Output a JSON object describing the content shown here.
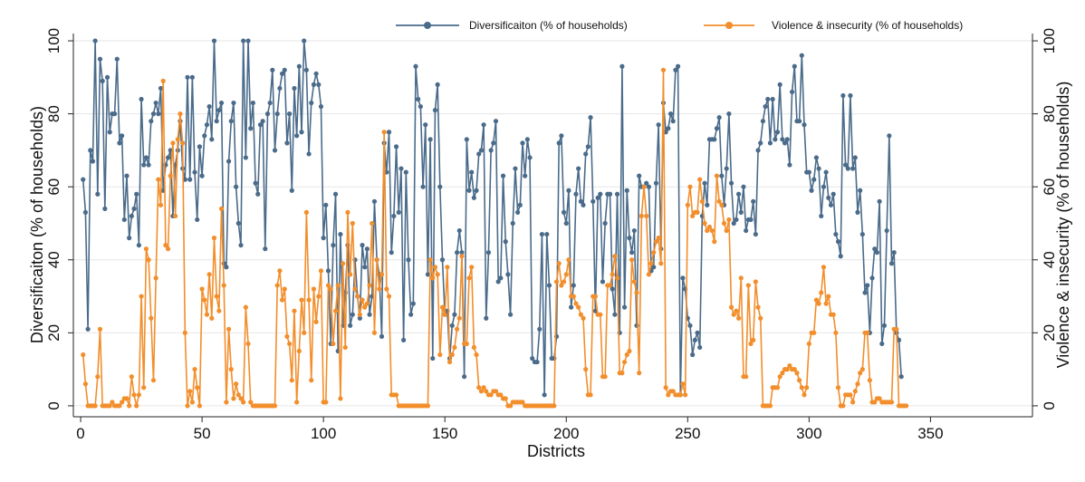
{
  "chart_data": {
    "type": "line",
    "xlabel": "Districts",
    "ylabel_left": "Diversificaiton (% of households)",
    "ylabel_right": "Violence & insecurity (% of households)",
    "xlim": [
      -3,
      392
    ],
    "ylim": [
      -3,
      102
    ],
    "xticks": [
      0,
      50,
      100,
      150,
      200,
      250,
      300,
      350
    ],
    "yticks": [
      0,
      20,
      40,
      60,
      80,
      100
    ],
    "grid": "horizontal",
    "legend_position": "top",
    "x_start": 1,
    "series": [
      {
        "name": "Diversificaiton (% of households)",
        "color": "#4a6b8a",
        "axis": "left",
        "values": [
          62,
          53,
          21,
          70,
          67,
          100,
          58,
          95,
          89,
          54,
          90,
          75,
          80,
          80,
          95,
          72,
          74,
          51,
          63,
          46,
          52,
          54,
          58,
          44,
          84,
          66,
          68,
          66,
          78,
          80,
          83,
          80,
          87,
          59,
          66,
          68,
          70,
          52,
          66,
          70,
          78,
          65,
          62,
          90,
          62,
          90,
          64,
          51,
          71,
          63,
          74,
          77,
          82,
          73,
          100,
          78,
          81,
          83,
          39,
          38,
          67,
          78,
          83,
          60,
          50,
          44,
          100,
          68,
          100,
          76,
          83,
          61,
          58,
          77,
          78,
          43,
          80,
          83,
          92,
          70,
          80,
          87,
          91,
          92,
          72,
          80,
          59,
          87,
          74,
          93,
          75,
          100,
          92,
          69,
          83,
          88,
          91,
          88,
          82,
          46,
          55,
          37,
          17,
          44,
          58,
          15,
          47,
          22,
          31,
          44,
          22,
          25,
          40,
          30,
          24,
          44,
          38,
          43,
          25,
          30,
          56,
          40,
          36,
          19,
          72,
          64,
          75,
          42,
          52,
          71,
          53,
          65,
          18,
          64,
          40,
          25,
          28,
          93,
          84,
          82,
          60,
          77,
          36,
          73,
          13,
          81,
          88,
          60,
          40,
          25,
          26,
          13,
          22,
          25,
          42,
          48,
          42,
          8,
          73,
          59,
          64,
          57,
          59,
          69,
          70,
          77,
          24,
          42,
          70,
          72,
          78,
          34,
          35,
          63,
          45,
          36,
          25,
          50,
          65,
          53,
          55,
          72,
          63,
          73,
          68,
          13,
          12,
          12,
          21,
          47,
          3,
          47,
          33,
          13,
          13,
          19,
          72,
          74,
          53,
          50,
          59,
          27,
          33,
          58,
          65,
          56,
          55,
          69,
          71,
          79,
          56,
          26,
          57,
          58,
          34,
          50,
          58,
          58,
          32,
          25,
          58,
          20,
          93,
          27,
          59,
          46,
          42,
          48,
          22,
          63,
          60,
          60,
          61,
          60,
          37,
          38,
          61,
          77,
          43,
          83,
          75,
          76,
          80,
          78,
          92,
          93,
          3,
          35,
          32,
          24,
          22,
          14,
          18,
          20,
          16,
          52,
          61,
          55,
          73,
          73,
          73,
          76,
          79,
          63,
          55,
          65,
          80,
          61,
          50,
          51,
          58,
          53,
          60,
          48,
          51,
          51,
          56,
          47,
          70,
          72,
          78,
          82,
          84,
          72,
          84,
          73,
          75,
          88,
          73,
          72,
          73,
          66,
          86,
          93,
          78,
          78,
          96,
          77,
          64,
          64,
          59,
          62,
          68,
          65,
          52,
          60,
          64,
          57,
          55,
          58,
          47,
          45,
          41,
          85,
          66,
          65,
          85,
          65,
          68,
          53,
          59,
          47,
          31,
          33,
          20,
          35,
          43,
          42,
          56,
          17,
          22,
          48,
          74,
          39,
          42,
          20,
          18,
          8
        ]
      },
      {
        "name": "Violence & insecurity (% of households)",
        "color": "#f28e2b",
        "axis": "right",
        "values": [
          14,
          6,
          0,
          0,
          0,
          0,
          8,
          21,
          0,
          0,
          0,
          0,
          1,
          0,
          0,
          0,
          1,
          2,
          2,
          0,
          8,
          3,
          0,
          3,
          30,
          5,
          43,
          40,
          24,
          7,
          35,
          62,
          55,
          89,
          44,
          43,
          63,
          72,
          52,
          73,
          80,
          72,
          20,
          0,
          4,
          1,
          10,
          5,
          0,
          32,
          29,
          25,
          36,
          24,
          46,
          30,
          26,
          54,
          33,
          1,
          21,
          10,
          2,
          6,
          3,
          2,
          1,
          27,
          17,
          1,
          0,
          0,
          0,
          0,
          0,
          0,
          0,
          0,
          0,
          0,
          33,
          37,
          29,
          32,
          19,
          17,
          7,
          26,
          1,
          15,
          29,
          20,
          53,
          29,
          7,
          32,
          23,
          30,
          37,
          1,
          1,
          33,
          32,
          17,
          26,
          33,
          2,
          39,
          16,
          53,
          36,
          50,
          32,
          30,
          25,
          29,
          27,
          28,
          33,
          50,
          20,
          40,
          32,
          36,
          75,
          32,
          30,
          3,
          3,
          3,
          0,
          0,
          0,
          0,
          0,
          0,
          0,
          0,
          0,
          0,
          0,
          0,
          0,
          40,
          35,
          38,
          36,
          14,
          27,
          25,
          38,
          12,
          14,
          16,
          21,
          24,
          41,
          17,
          17,
          35,
          38,
          16,
          14,
          5,
          4,
          5,
          4,
          3,
          3,
          4,
          4,
          3,
          3,
          2,
          2,
          0,
          0,
          1,
          1,
          1,
          1,
          1,
          0,
          0,
          0,
          0,
          0,
          0,
          0,
          0,
          0,
          0,
          0,
          0,
          0,
          34,
          39,
          33,
          34,
          36,
          40,
          30,
          30,
          28,
          27,
          25,
          24,
          10,
          3,
          3,
          30,
          30,
          25,
          25,
          8,
          8,
          33,
          33,
          36,
          41,
          35,
          9,
          9,
          12,
          14,
          15,
          40,
          34,
          31,
          9,
          52,
          60,
          52,
          36,
          39,
          42,
          45,
          46,
          39,
          92,
          5,
          3,
          4,
          4,
          3,
          3,
          3,
          6,
          3,
          55,
          60,
          52,
          53,
          53,
          62,
          56,
          50,
          48,
          49,
          48,
          45,
          63,
          56,
          55,
          50,
          48,
          51,
          27,
          25,
          26,
          24,
          35,
          8,
          8,
          33,
          17,
          18,
          34,
          27,
          24,
          0,
          0,
          0,
          0,
          5,
          5,
          5,
          8,
          9,
          10,
          10,
          11,
          10,
          10,
          9,
          7,
          5,
          3,
          5,
          17,
          20,
          20,
          29,
          28,
          31,
          38,
          28,
          30,
          25,
          25,
          20,
          5,
          0,
          0,
          3,
          3,
          3,
          1,
          4,
          6,
          9,
          10,
          20,
          20,
          7,
          1,
          1,
          2,
          2,
          1,
          1,
          1,
          1,
          1,
          21,
          21,
          0,
          0,
          0,
          0
        ]
      }
    ]
  }
}
